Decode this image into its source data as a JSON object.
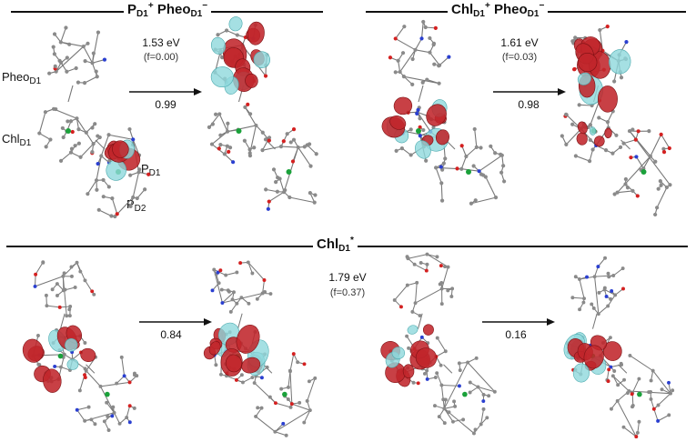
{
  "panels": {
    "top_left": {
      "title": {
        "main": "P",
        "sub": "D1",
        "sup": "+",
        "main2": " Pheo",
        "sub2": "D1",
        "sup2": "−"
      },
      "energy": "1.53 eV",
      "osc": "(f=0.00)",
      "coef": "0.99"
    },
    "top_right": {
      "title": {
        "main": "Chl",
        "sub": "D1",
        "sup": "+",
        "main2": " Pheo",
        "sub2": "D1",
        "sup2": "−"
      },
      "energy": "1.61 eV",
      "osc": "(f=0.03)",
      "coef": "0.98"
    },
    "bottom": {
      "title": {
        "main": "Chl",
        "sub": "D1",
        "sup": "*"
      },
      "energy": "1.79 eV",
      "osc": "(f=0.37)",
      "coef_left": "0.84",
      "coef_right": "0.16"
    }
  },
  "labels": {
    "pheo": {
      "main": "Pheo",
      "sub": "D1"
    },
    "chl": {
      "main": "Chl",
      "sub": "D1"
    },
    "pd1": {
      "main": "P",
      "sub": "D1"
    },
    "pd2": {
      "main": "P",
      "sub": "D2"
    }
  },
  "colors": {
    "lobe_red": "#c0252b",
    "lobe_cyan": "#8fd8dc",
    "atom_gray": "#8a8a8a",
    "atom_red": "#d42020",
    "atom_blue": "#2a3fd0",
    "atom_green": "#1aa13a"
  }
}
